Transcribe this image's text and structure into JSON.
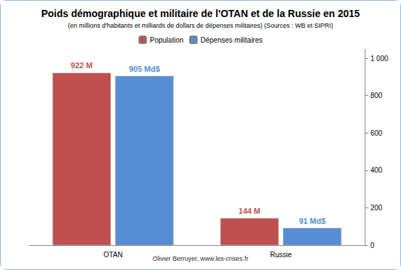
{
  "chart_data": {
    "type": "bar",
    "title": "Poids démographique et militaire de l'OTAN et de la Russie en 2015",
    "subtitle": "(en millions d'habitants et milliards de dollars de dépenses militaires) (Sources : WB et SIPRI)",
    "annotations": [
      "Olivier Berruyer, www.les-crises.fr"
    ],
    "categories": [
      "OTAN",
      "Russie"
    ],
    "series": [
      {
        "name": "Population",
        "color": "#c0504d",
        "values": [
          922,
          144
        ],
        "value_labels": [
          "922 M",
          "144 M"
        ]
      },
      {
        "name": "Dépenses militaires",
        "color": "#558ed5",
        "values": [
          905,
          91
        ],
        "value_labels": [
          "905 Md$",
          "91 Md$"
        ]
      }
    ],
    "ylim": [
      0,
      1050
    ],
    "yticks": [
      0,
      200,
      400,
      600,
      800,
      {
        "value": 1000,
        "label": "1 000"
      }
    ],
    "grid": false,
    "legend": "top",
    "data_labels": true
  }
}
